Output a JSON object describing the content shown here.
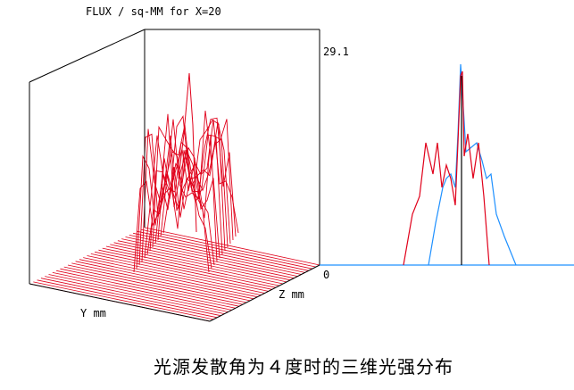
{
  "plot": {
    "title": "FLUX / sq-MM for X=20",
    "max_label": "29.1",
    "zero_label": "0",
    "z_axis_label": "Z mm",
    "y_axis_label": "Y mm"
  },
  "caption": "光源发散角为４度时的三维光强分布"
}
